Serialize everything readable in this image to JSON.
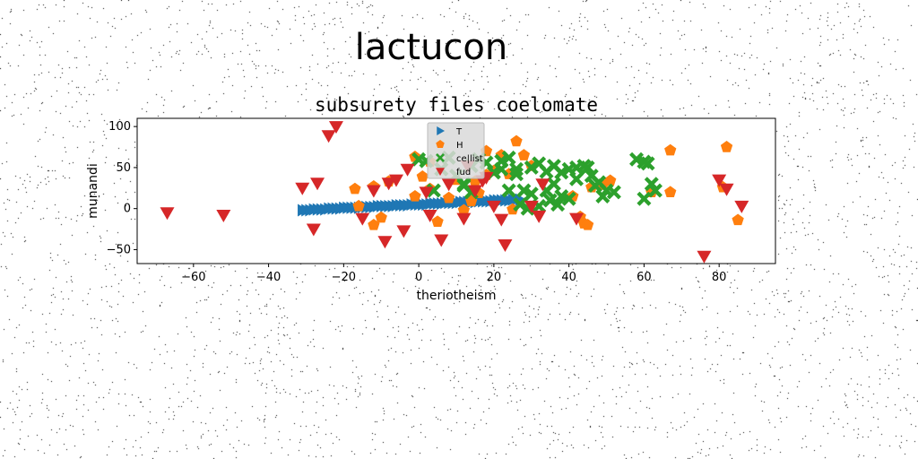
{
  "figure": {
    "suptitle": "lactucon"
  },
  "chart_data": {
    "type": "scatter",
    "title": "subsurety files coelomate",
    "xlabel": "theriotheism",
    "ylabel": "munandi",
    "xlim": [
      -75,
      95
    ],
    "ylim": [
      -67,
      110
    ],
    "xticks": [
      -60,
      -40,
      -20,
      0,
      20,
      40,
      60,
      80
    ],
    "yticks": [
      -50,
      0,
      50,
      100
    ],
    "grid": false,
    "legend_placement": "top-center",
    "series": [
      {
        "name": "T",
        "marker": "triangle-right",
        "color": "#1f77b4",
        "points": [
          [
            -31,
            -2
          ],
          [
            -30,
            -2
          ],
          [
            -29,
            -2
          ],
          [
            -28,
            -1
          ],
          [
            -27,
            -1
          ],
          [
            -26,
            -1
          ],
          [
            -25,
            -1
          ],
          [
            -24,
            0
          ],
          [
            -23,
            0
          ],
          [
            -22,
            0
          ],
          [
            -21,
            0
          ],
          [
            -20,
            1
          ],
          [
            -19,
            1
          ],
          [
            -18,
            1
          ],
          [
            -17,
            1
          ],
          [
            -16,
            1
          ],
          [
            -15,
            2
          ],
          [
            -14,
            2
          ],
          [
            -13,
            2
          ],
          [
            -12,
            2
          ],
          [
            -11,
            3
          ],
          [
            -10,
            3
          ],
          [
            -9,
            3
          ],
          [
            -8,
            3
          ],
          [
            -7,
            3
          ],
          [
            -6,
            4
          ],
          [
            -5,
            4
          ],
          [
            -4,
            4
          ],
          [
            -3,
            4
          ],
          [
            -2,
            5
          ],
          [
            -1,
            5
          ],
          [
            0,
            5
          ],
          [
            1,
            5
          ],
          [
            2,
            5
          ],
          [
            3,
            6
          ],
          [
            4,
            6
          ],
          [
            5,
            6
          ],
          [
            6,
            6
          ],
          [
            7,
            7
          ],
          [
            8,
            7
          ],
          [
            9,
            7
          ],
          [
            10,
            7
          ],
          [
            11,
            8
          ],
          [
            12,
            8
          ],
          [
            13,
            8
          ],
          [
            14,
            8
          ],
          [
            15,
            8
          ],
          [
            16,
            9
          ],
          [
            17,
            9
          ],
          [
            18,
            9
          ],
          [
            19,
            9
          ],
          [
            20,
            10
          ],
          [
            21,
            10
          ],
          [
            22,
            10
          ],
          [
            23,
            10
          ],
          [
            24,
            10
          ],
          [
            25,
            11
          ],
          [
            26,
            11
          ],
          [
            27,
            11
          ]
        ]
      },
      {
        "name": "H",
        "marker": "pentagon",
        "color": "#ff7f0e",
        "points": [
          [
            -17,
            24
          ],
          [
            -12,
            27
          ],
          [
            -10,
            -11
          ],
          [
            -8,
            33
          ],
          [
            -12,
            -20
          ],
          [
            -16,
            3
          ],
          [
            -1,
            63
          ],
          [
            1,
            39
          ],
          [
            3,
            57
          ],
          [
            5,
            -16
          ],
          [
            8,
            13
          ],
          [
            10,
            35
          ],
          [
            12,
            -2
          ],
          [
            14,
            9
          ],
          [
            16,
            19
          ],
          [
            18,
            41
          ],
          [
            20,
            46
          ],
          [
            22,
            65
          ],
          [
            24,
            42
          ],
          [
            26,
            82
          ],
          [
            28,
            65
          ],
          [
            30,
            52
          ],
          [
            -1,
            15
          ],
          [
            3,
            24
          ],
          [
            15,
            33
          ],
          [
            18,
            70
          ],
          [
            41,
            15
          ],
          [
            43,
            -10
          ],
          [
            44,
            -18
          ],
          [
            45,
            -20
          ],
          [
            46,
            26
          ],
          [
            49,
            29
          ],
          [
            51,
            34
          ],
          [
            62,
            20
          ],
          [
            67,
            71
          ],
          [
            67,
            20
          ],
          [
            81,
            26
          ],
          [
            82,
            75
          ],
          [
            85,
            -14
          ],
          [
            25,
            -1
          ]
        ]
      },
      {
        "name": "ce|list",
        "marker": "x",
        "color": "#2ca02c",
        "points": [
          [
            0,
            60
          ],
          [
            2,
            58
          ],
          [
            4,
            22
          ],
          [
            6,
            48
          ],
          [
            8,
            62
          ],
          [
            10,
            40
          ],
          [
            12,
            30
          ],
          [
            14,
            52
          ],
          [
            16,
            60
          ],
          [
            18,
            56
          ],
          [
            20,
            44
          ],
          [
            22,
            58
          ],
          [
            24,
            62
          ],
          [
            26,
            48
          ],
          [
            28,
            22
          ],
          [
            30,
            50
          ],
          [
            32,
            55
          ],
          [
            34,
            45
          ],
          [
            35,
            10
          ],
          [
            36,
            52
          ],
          [
            37,
            5
          ],
          [
            38,
            15
          ],
          [
            40,
            12
          ],
          [
            42,
            50
          ],
          [
            44,
            52
          ],
          [
            46,
            40
          ],
          [
            47,
            28
          ],
          [
            48,
            32
          ],
          [
            49,
            15
          ],
          [
            50,
            22
          ],
          [
            52,
            20
          ],
          [
            58,
            60
          ],
          [
            60,
            57
          ],
          [
            61,
            55
          ],
          [
            62,
            30
          ],
          [
            63,
            22
          ],
          [
            60,
            12
          ],
          [
            27,
            5
          ],
          [
            29,
            0
          ],
          [
            32,
            3
          ],
          [
            22,
            48
          ],
          [
            24,
            22
          ],
          [
            26,
            42
          ],
          [
            14,
            20
          ],
          [
            12,
            28
          ],
          [
            30,
            18
          ],
          [
            34,
            22
          ],
          [
            36,
            30
          ],
          [
            38,
            44
          ],
          [
            40,
            48
          ],
          [
            42,
            36
          ],
          [
            45,
            50
          ]
        ]
      },
      {
        "name": "fud",
        "marker": "triangle-down",
        "color": "#d62728",
        "points": [
          [
            -67,
            -5
          ],
          [
            -52,
            -8
          ],
          [
            -31,
            25
          ],
          [
            -28,
            -25
          ],
          [
            -27,
            31
          ],
          [
            -24,
            89
          ],
          [
            -22,
            100
          ],
          [
            -15,
            -12
          ],
          [
            -12,
            22
          ],
          [
            -9,
            -40
          ],
          [
            -8,
            31
          ],
          [
            -6,
            35
          ],
          [
            -4,
            -27
          ],
          [
            -3,
            48
          ],
          [
            2,
            20
          ],
          [
            3,
            -8
          ],
          [
            6,
            -38
          ],
          [
            8,
            30
          ],
          [
            12,
            -12
          ],
          [
            13,
            52
          ],
          [
            15,
            22
          ],
          [
            17,
            34
          ],
          [
            18,
            38
          ],
          [
            20,
            3
          ],
          [
            22,
            -13
          ],
          [
            23,
            -44
          ],
          [
            30,
            3
          ],
          [
            32,
            -9
          ],
          [
            33,
            30
          ],
          [
            42,
            -12
          ],
          [
            76,
            -58
          ],
          [
            80,
            35
          ],
          [
            82,
            24
          ],
          [
            86,
            3
          ]
        ]
      }
    ]
  }
}
